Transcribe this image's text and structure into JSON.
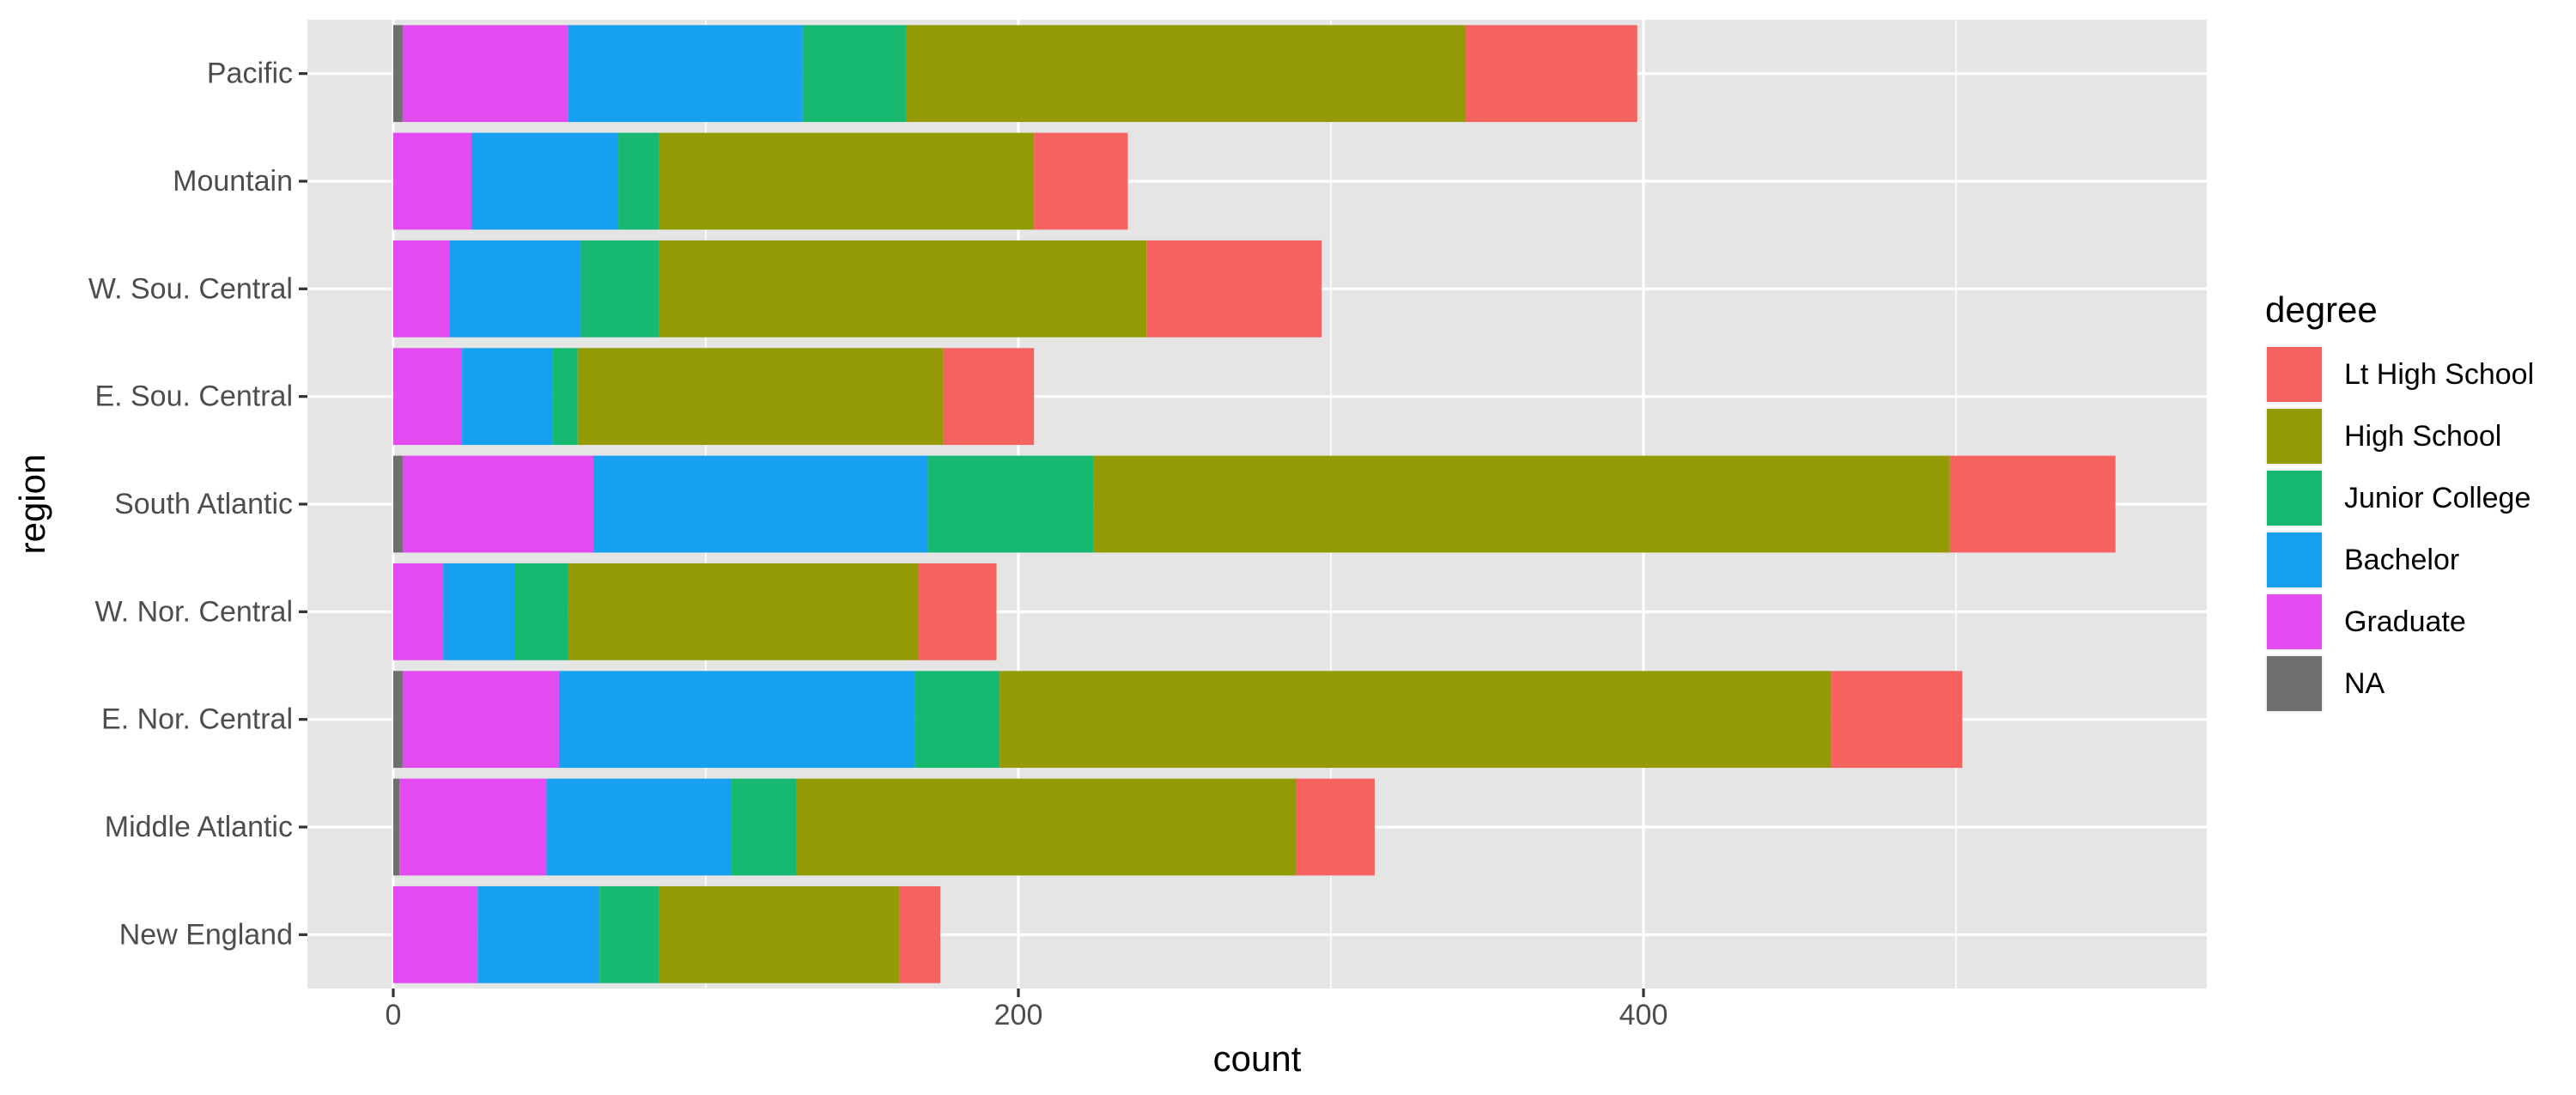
{
  "chart_data": {
    "type": "bar",
    "orientation": "horizontal",
    "stacked": true,
    "xlabel": "count",
    "ylabel": "region",
    "xlim": [
      -27.5,
      576
    ],
    "x_ticks": [
      0,
      200,
      400
    ],
    "x_tick_labels": [
      "0",
      "200",
      "400"
    ],
    "grid": true,
    "legend_position": "right",
    "categories": [
      "Pacific",
      "Mountain",
      "W. Sou. Central",
      "E. Sou. Central",
      "South Atlantic",
      "W. Nor. Central",
      "E. Nor. Central",
      "Middle Atlantic",
      "New England"
    ],
    "legend": {
      "title": "degree",
      "entries": [
        "Lt High School",
        "High School",
        "Junior College",
        "Bachelor",
        "Graduate",
        "NA"
      ]
    },
    "series": [
      {
        "name": "NA",
        "color": "#6f6f6f",
        "values": [
          3,
          0,
          0,
          0,
          3,
          0,
          3,
          2,
          0
        ]
      },
      {
        "name": "Graduate",
        "color": "#e24bf0",
        "values": [
          53,
          25,
          18,
          22,
          61,
          16,
          50,
          47,
          27
        ]
      },
      {
        "name": "Bachelor",
        "color": "#17a0f0",
        "values": [
          75,
          47,
          42,
          29,
          107,
          23,
          114,
          59,
          39
        ]
      },
      {
        "name": "Junior College",
        "color": "#17b86f",
        "values": [
          33,
          13,
          25,
          8,
          53,
          17,
          27,
          21,
          19
        ]
      },
      {
        "name": "High School",
        "color": "#949a04",
        "values": [
          179,
          120,
          156,
          117,
          274,
          112,
          266,
          160,
          77
        ]
      },
      {
        "name": "Lt High School",
        "color": "#f5625f",
        "values": [
          55,
          30,
          56,
          29,
          53,
          25,
          42,
          25,
          13
        ]
      }
    ]
  }
}
